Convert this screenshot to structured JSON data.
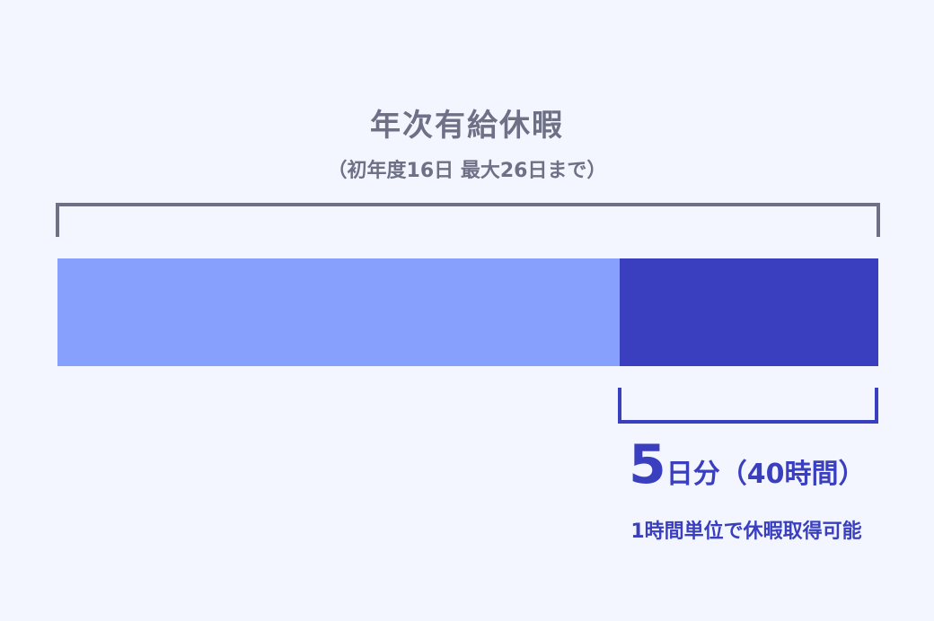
{
  "title": "年次有給休暇",
  "subtitle": "（初年度16日 最大26日まで）",
  "segment": {
    "days": "5",
    "unit_label": "日分（40時間）",
    "note": "1時間単位で休暇取得可能"
  },
  "colors": {
    "text_gray": "#6e7186",
    "bar_light": "#87a0fd",
    "bar_dark": "#3a3fbf",
    "background": "#f3f6fe"
  }
}
